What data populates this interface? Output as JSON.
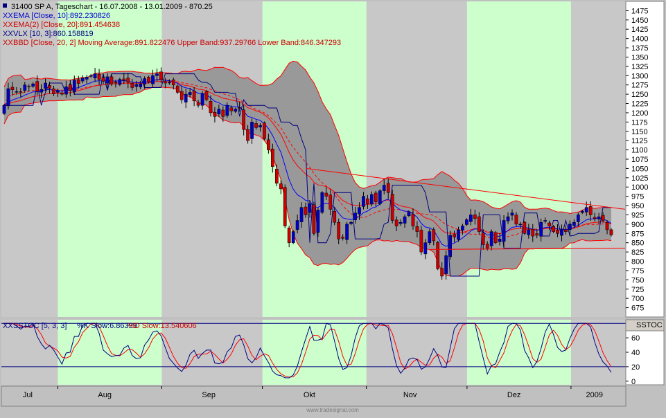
{
  "header": {
    "symbol_line": "31400  SP A, Tageschart - 16.07.2008 - 13.01.2009 - 870.25",
    "legend": [
      {
        "text": "EMA [Close, 10]:892.230826",
        "color": "#0000cc"
      },
      {
        "text": "EMA(2) [Close, 20]:891.454638",
        "color": "#cc0000"
      },
      {
        "text": "VLX [10, 3]:860.158819",
        "color": "#000080"
      },
      {
        "text": "BBD [Close, 20, 2] Moving Average:891.822476 Upper Band:937.29766 Lower Band:846.347293",
        "color": "#cc0000"
      }
    ]
  },
  "stoch_header": {
    "prefix": "SSTOC [5, 3, 3]",
    "k_text": "%K Slow:6.86399",
    "d_text": "%D Slow:13.540606",
    "panel_tag": "SSTOC"
  },
  "footer": {
    "watermark": "www.tradesignal.com"
  },
  "colors": {
    "band_fill": "#999999",
    "band_line": "#ff0000",
    "ema10": "#0000ff",
    "ema20": "#ff0000",
    "vlx": "#000080",
    "up_candle": "#0000cc",
    "down_candle": "#cc0000",
    "green_zone": "#ccffcc",
    "gray_zone": "#c8c8c8",
    "k_line": "#000080",
    "d_line": "#ff0000"
  },
  "chart_data": [
    {
      "type": "candlestick",
      "title": "31400  SP A, Tageschart - 16.07.2008 - 13.01.2009 - 870.25",
      "ylim": [
        650,
        1500
      ],
      "y_ticks": [
        675,
        700,
        725,
        750,
        775,
        800,
        825,
        850,
        875,
        900,
        925,
        950,
        975,
        1000,
        1025,
        1050,
        1075,
        1100,
        1125,
        1150,
        1175,
        1200,
        1225,
        1250,
        1275,
        1300,
        1325,
        1350,
        1375,
        1400,
        1425,
        1450,
        1475
      ],
      "x_month_labels": [
        {
          "label": "Jul",
          "date": "2008-07-23"
        },
        {
          "label": "Aug",
          "date": "2008-08-15"
        },
        {
          "label": "Sep",
          "date": "2008-09-15"
        },
        {
          "label": "Okt",
          "date": "2008-10-15"
        },
        {
          "label": "Nov",
          "date": "2008-11-14"
        },
        {
          "label": "Dez",
          "date": "2008-12-15"
        },
        {
          "label": "2009",
          "date": "2009-01-08"
        }
      ],
      "date_range": [
        "2008-07-16",
        "2009-01-13"
      ],
      "closes": [
        1220,
        1265,
        1262,
        1257,
        1255,
        1275,
        1270,
        1278,
        1258,
        1263,
        1280,
        1266,
        1251,
        1259,
        1250,
        1270,
        1260,
        1288,
        1279,
        1293,
        1296,
        1300,
        1305,
        1290,
        1285,
        1297,
        1278,
        1280,
        1290,
        1287,
        1282,
        1268,
        1276,
        1278,
        1292,
        1283,
        1300,
        1305,
        1288,
        1280,
        1282,
        1275,
        1255,
        1235,
        1250,
        1255,
        1232,
        1220,
        1252,
        1235,
        1200,
        1190,
        1210,
        1190,
        1220,
        1205,
        1210,
        1213,
        1155,
        1125,
        1175,
        1160,
        1166,
        1130,
        1100,
        1055,
        1010,
        995,
        895,
        850,
        880,
        910,
        945,
        925,
        955,
        875,
        938,
        985,
        975,
        940,
        905,
        860,
        862,
        900,
        905,
        930,
        945,
        975,
        955,
        980,
        960,
        990,
        1005,
        985,
        910,
        895,
        905,
        920,
        933,
        895,
        880,
        825,
        850,
        880,
        855,
        780,
        760,
        815,
        870,
        865,
        885,
        895,
        912,
        925,
        915,
        880,
        845,
        835,
        880,
        850,
        860,
        910,
        920,
        930,
        900,
        900,
        875,
        885,
        868,
        870,
        905,
        910,
        895,
        880,
        875,
        885,
        880,
        900,
        905,
        925,
        935,
        945,
        925,
        915,
        920,
        910,
        885,
        871
      ],
      "bollinger": {
        "period": 20,
        "stddev": 2
      },
      "ema_periods": [
        10,
        20
      ],
      "trendlines": [
        {
          "from": {
            "date": "2008-10-14",
            "value": 1050
          },
          "to": {
            "date": "2009-01-13",
            "value": 940
          }
        },
        {
          "from": {
            "date": "2008-11-20",
            "value": 832
          },
          "to": {
            "date": "2009-01-13",
            "value": 835
          }
        }
      ],
      "last": {
        "ema10": 892.230826,
        "ema20": 891.454638,
        "vlx": 860.158819,
        "bb_mid": 891.822476,
        "bb_upper": 937.29766,
        "bb_lower": 846.347293
      }
    },
    {
      "type": "line",
      "title": "SSTOC [5, 3, 3]",
      "ylim": [
        -5,
        85
      ],
      "y_ticks": [
        0,
        20,
        40,
        60
      ],
      "reference_lines": [
        20,
        80
      ],
      "series": [
        {
          "name": "%K Slow",
          "last": 6.86399
        },
        {
          "name": "%D Slow",
          "last": 13.540606
        }
      ]
    }
  ]
}
